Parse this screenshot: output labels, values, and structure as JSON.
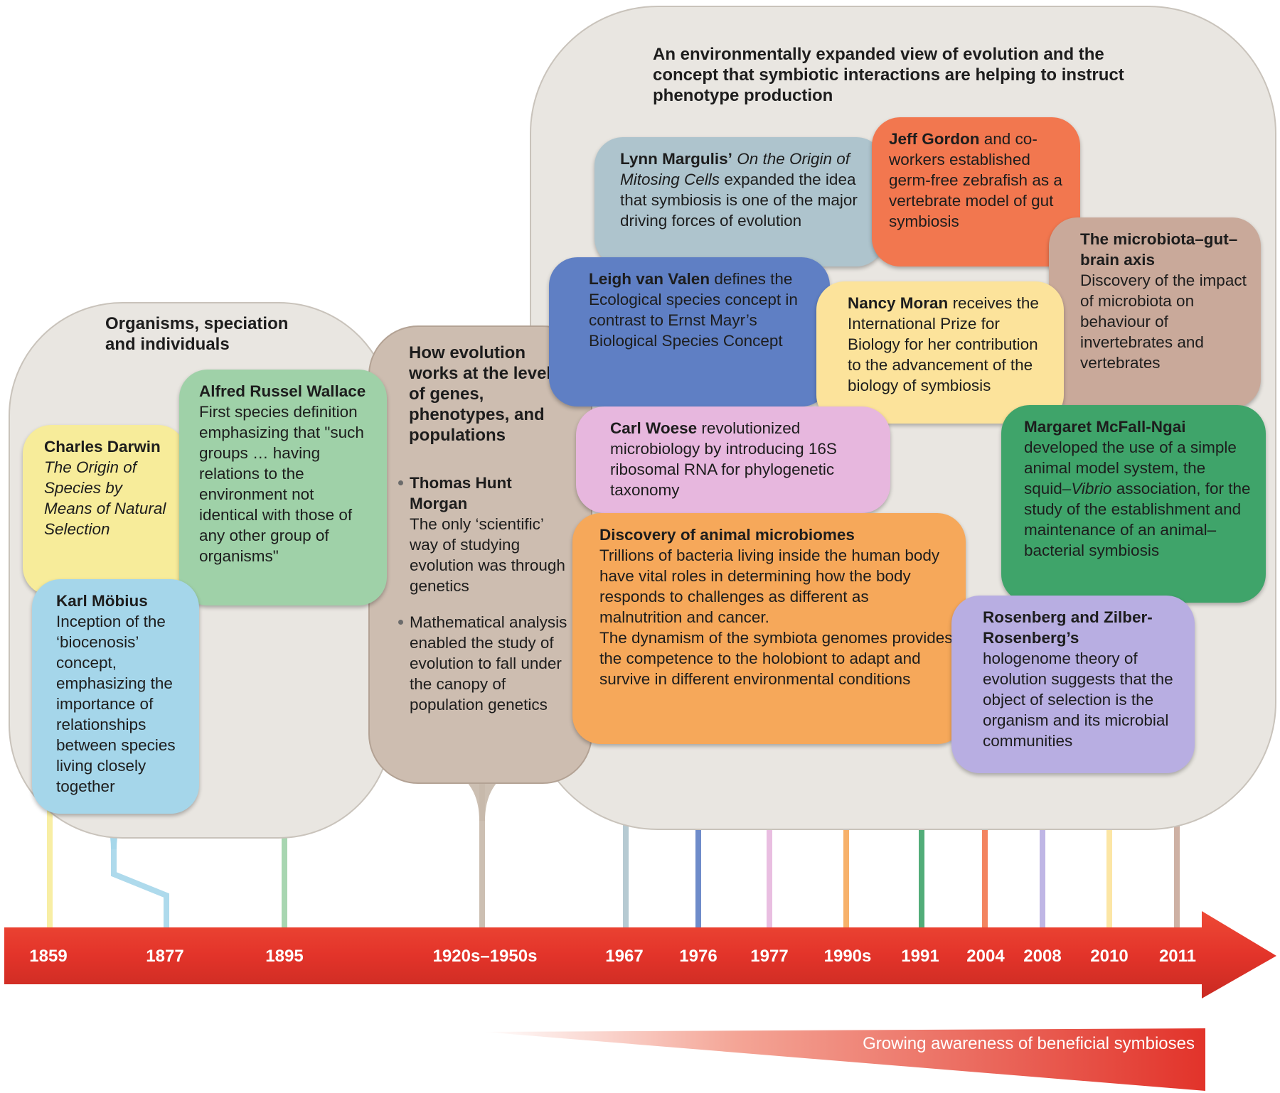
{
  "regions": {
    "left": "Organisms, speciation and individuals",
    "middle": "How evolution works at the level of genes, phenotypes, and populations",
    "right": "An environmentally expanded view of evolution and the concept that symbiotic interactions are helping to instruct phenotype production"
  },
  "events": {
    "darwin": {
      "title": "Charles Darwin",
      "text": "The Origin of Species by Means of Natural Selection"
    },
    "mobius": {
      "title": "Karl Möbius",
      "text": "Inception of the ‘biocenosis’ concept, emphasizing the importance of relationships between species living closely together"
    },
    "wallace": {
      "title": "Alfred Russel Wallace",
      "text": "First species definition emphasizing that \"such groups … having relations to the environment not identical with those of any other group of organisms\""
    },
    "morgan": {
      "title": "Thomas Hunt Morgan",
      "text": "The only ‘scientific’ way of studying evolution was through genetics"
    },
    "math": {
      "text": "Mathematical analysis enabled the study of evolution to fall under the canopy of population genetics"
    },
    "margulis": {
      "title": "Lynn Margulis’",
      "italic": "On the Origin of Mitosing Cells",
      "text": "expanded the idea that symbiosis is one of the major driving forces of evolution"
    },
    "vanvalen": {
      "title": "Leigh van Valen",
      "text": "defines the Ecological species concept in contrast to Ernst Mayr’s Biological Species Concept"
    },
    "woese": {
      "title": "Carl Woese",
      "text": "revolutionized microbiology by introducing 16S ribosomal RNA for phylogenetic taxonomy"
    },
    "microbiomes": {
      "title": "Discovery of animal microbiomes",
      "text1": "Trillions of bacteria living inside the human body have vital roles in determining how the body responds to challenges as different as malnutrition and cancer.",
      "text2": "The dynamism of the symbiota genomes provides the competence to the holobiont to adapt and survive in different environmental conditions"
    },
    "gordon": {
      "title": "Jeff Gordon",
      "text": "and co-workers established germ-free zebrafish as a vertebrate model of gut symbiosis"
    },
    "moran": {
      "title": "Nancy Moran",
      "text": "receives the International Prize for Biology for her contribution to the advancement of the biology of symbiosis"
    },
    "gutbrain": {
      "title": "The microbiota–gut–brain axis",
      "text": "Discovery of the impact of microbiota on behaviour of invertebrates and vertebrates"
    },
    "mcfall": {
      "title": "Margaret McFall-Ngai",
      "text_a": "developed the use of a simple animal model system, the squid–",
      "italic": "Vibrio",
      "text_b": "association, for the study of the establishment and maintenance of an animal–bacterial symbiosis"
    },
    "rosenberg": {
      "title": "Rosenberg and Zilber-Rosenberg’s",
      "text": "hologenome theory of evolution suggests that the object of selection is the organism and its microbial communities"
    }
  },
  "years": [
    "1859",
    "1877",
    "1895",
    "1920s–1950s",
    "1967",
    "1976",
    "1977",
    "1990s",
    "1991",
    "2004",
    "2008",
    "2010",
    "2011"
  ],
  "awareness_label": "Growing awareness of beneficial symbioses",
  "colors": {
    "arrow": "#e8372b",
    "yellow": "#f7ec9a",
    "blue": "#a5d6ea",
    "green": "#9fd1a8",
    "brown": "#c7b8aa",
    "steel": "#aec4cd",
    "navy": "#5f7fc4",
    "pink": "#e7b7de",
    "orange": "#f6a85a",
    "salmon": "#f2774f",
    "gold": "#fce39b",
    "tan": "#c9a99a",
    "darkgreen": "#3fa46a",
    "purple": "#b8aee2"
  }
}
